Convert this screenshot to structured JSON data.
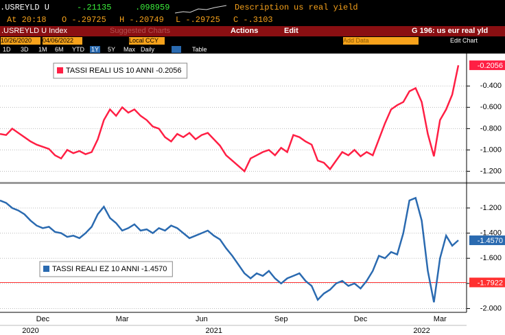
{
  "header": {
    "ticker": ".USREYLD U",
    "change": "-.21135",
    "change_pct": ".098959",
    "description_label": "Description",
    "description": "us real yield",
    "time": "At 20:18",
    "open": "O -.29725",
    "high": "H -.20749",
    "low": "L -.29725",
    "close": "C -.3103",
    "index_name": ".USREYLD U Index",
    "suggested": "Suggested Charts",
    "actions": "Actions",
    "edit": "Edit",
    "chart_name": "G 196: us eur real yld",
    "start_date": "10/26/2020",
    "end_date": "04/06/2022",
    "currency": "Local CCY",
    "add_data": "Add Data",
    "edit_chart": "Edit Chart",
    "periods": [
      "1D",
      "3D",
      "1M",
      "6M",
      "YTD",
      "1Y",
      "5Y",
      "Max"
    ],
    "frequency": "Daily",
    "table": "Table"
  },
  "chart_data": [
    {
      "type": "line",
      "legend": "upper left",
      "grid": true,
      "ylim": [
        -1.3,
        -0.16
      ],
      "yticks": [
        {
          "value": -0.4,
          "label": "-0.400"
        },
        {
          "value": -0.6,
          "label": "-0.600"
        },
        {
          "value": -0.8,
          "label": "-0.800"
        },
        {
          "value": -1.0,
          "label": "-1.000"
        },
        {
          "value": -1.2,
          "label": "-1.200"
        }
      ],
      "series": [
        {
          "name": "TASSI REALI US 10 ANNI -0.2056",
          "color": "#ff1f44",
          "last_label": "-0.2056",
          "values": [
            -0.85,
            -0.86,
            -0.8,
            -0.84,
            -0.88,
            -0.92,
            -0.95,
            -0.97,
            -0.99,
            -1.05,
            -1.08,
            -1.0,
            -1.03,
            -1.01,
            -1.04,
            -1.02,
            -0.9,
            -0.72,
            -0.62,
            -0.68,
            -0.6,
            -0.65,
            -0.62,
            -0.68,
            -0.72,
            -0.78,
            -0.8,
            -0.88,
            -0.92,
            -0.85,
            -0.88,
            -0.84,
            -0.9,
            -0.86,
            -0.84,
            -0.9,
            -0.96,
            -1.05,
            -1.1,
            -1.15,
            -1.2,
            -1.08,
            -1.05,
            -1.02,
            -1.0,
            -1.05,
            -0.98,
            -1.02,
            -0.86,
            -0.88,
            -0.92,
            -0.95,
            -1.1,
            -1.12,
            -1.18,
            -1.1,
            -1.02,
            -1.05,
            -1.0,
            -1.06,
            -1.02,
            -1.05,
            -0.9,
            -0.75,
            -0.62,
            -0.58,
            -0.55,
            -0.45,
            -0.42,
            -0.55,
            -0.85,
            -1.06,
            -0.72,
            -0.62,
            -0.48,
            -0.2056
          ]
        }
      ]
    },
    {
      "type": "line",
      "legend": "lower left",
      "grid": true,
      "ylim": [
        -2.03,
        -1.02
      ],
      "yticks": [
        {
          "value": -1.2,
          "label": "-1.200"
        },
        {
          "value": -1.4,
          "label": "-1.400"
        },
        {
          "value": -1.6,
          "label": "-1.600"
        },
        {
          "value": -1.8,
          "label": "-1.800"
        },
        {
          "value": -2.0,
          "label": "-2.000"
        }
      ],
      "hline": {
        "value": -1.7922,
        "label": "-1.7922",
        "color": "#ff3030"
      },
      "categories": [
        null,
        null,
        null,
        null,
        null,
        null,
        null,
        "Dec",
        null,
        null,
        null,
        null,
        null,
        null,
        null,
        null,
        null,
        null,
        null,
        null,
        "Mar",
        null,
        null,
        null,
        null,
        null,
        null,
        null,
        null,
        null,
        null,
        null,
        null,
        "Jun",
        null,
        null,
        null,
        null,
        null,
        null,
        null,
        null,
        null,
        null,
        null,
        null,
        "Sep",
        null,
        null,
        null,
        null,
        null,
        null,
        null,
        null,
        null,
        null,
        null,
        null,
        "Dec",
        null,
        null,
        null,
        null,
        null,
        null,
        null,
        null,
        null,
        null,
        null,
        null,
        "Mar",
        null,
        null,
        null
      ],
      "year_labels": [
        null,
        null,
        null,
        null,
        null,
        "2020",
        null,
        null,
        null,
        null,
        null,
        null,
        null,
        null,
        null,
        null,
        null,
        null,
        null,
        null,
        null,
        null,
        null,
        null,
        null,
        null,
        null,
        null,
        null,
        null,
        null,
        null,
        null,
        null,
        null,
        "2021",
        null,
        null,
        null,
        null,
        null,
        null,
        null,
        null,
        null,
        null,
        null,
        null,
        null,
        null,
        null,
        null,
        null,
        null,
        null,
        null,
        null,
        null,
        null,
        null,
        null,
        null,
        null,
        null,
        null,
        null,
        null,
        null,
        null,
        "2022",
        null,
        null,
        null,
        null,
        null,
        null
      ],
      "series": [
        {
          "name": "TASSI REALI EZ 10 ANNI -1.4570",
          "color": "#2a6ab0",
          "last_label": "-1.4570",
          "values": [
            -1.14,
            -1.16,
            -1.2,
            -1.22,
            -1.25,
            -1.3,
            -1.34,
            -1.36,
            -1.35,
            -1.39,
            -1.4,
            -1.43,
            -1.42,
            -1.44,
            -1.4,
            -1.35,
            -1.25,
            -1.19,
            -1.28,
            -1.32,
            -1.38,
            -1.36,
            -1.33,
            -1.38,
            -1.37,
            -1.4,
            -1.36,
            -1.38,
            -1.34,
            -1.36,
            -1.4,
            -1.44,
            -1.42,
            -1.4,
            -1.38,
            -1.42,
            -1.45,
            -1.52,
            -1.58,
            -1.65,
            -1.72,
            -1.76,
            -1.72,
            -1.74,
            -1.7,
            -1.76,
            -1.8,
            -1.76,
            -1.74,
            -1.72,
            -1.78,
            -1.82,
            -1.93,
            -1.88,
            -1.85,
            -1.8,
            -1.78,
            -1.82,
            -1.8,
            -1.84,
            -1.78,
            -1.7,
            -1.58,
            -1.6,
            -1.55,
            -1.57,
            -1.4,
            -1.14,
            -1.12,
            -1.3,
            -1.7,
            -1.95,
            -1.6,
            -1.42,
            -1.5,
            -1.457
          ]
        }
      ]
    }
  ]
}
